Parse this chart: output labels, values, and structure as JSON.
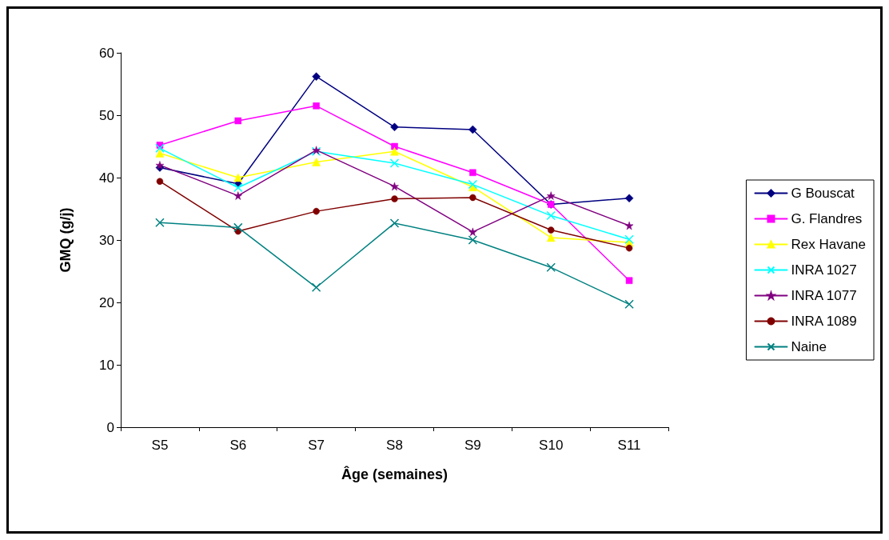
{
  "chart_data": {
    "type": "line",
    "xlabel": "Âge (semaines)",
    "ylabel": "GMQ (g/j)",
    "categories": [
      "S5",
      "S6",
      "S7",
      "S8",
      "S9",
      "S10",
      "S11"
    ],
    "ylim": [
      0,
      60
    ],
    "yticks": [
      0,
      10,
      20,
      30,
      40,
      50,
      60
    ],
    "grid": false,
    "legend": "right",
    "series": [
      {
        "name": "G Bouscat",
        "color": "#000080",
        "marker": "diamond",
        "values": [
          41.6,
          39,
          56.2,
          48.1,
          47.7,
          35.7,
          36.7
        ]
      },
      {
        "name": "G. Flandres",
        "color": "#ff00ff",
        "marker": "square",
        "values": [
          45.2,
          49.1,
          51.5,
          45,
          40.8,
          35.7,
          23.5
        ]
      },
      {
        "name": "Rex Havane",
        "color": "#ffff00",
        "marker": "triangle",
        "values": [
          43.9,
          40,
          42.5,
          44.2,
          38.5,
          30.4,
          29.6
        ]
      },
      {
        "name": "INRA 1027",
        "color": "#00ffff",
        "marker": "cross",
        "values": [
          44.7,
          38.4,
          44.2,
          42.3,
          38.9,
          33.9,
          30.1
        ]
      },
      {
        "name": "INRA 1077",
        "color": "#800080",
        "marker": "star",
        "values": [
          42,
          37.1,
          44.4,
          38.6,
          31.3,
          37.1,
          32.3
        ]
      },
      {
        "name": "INRA 1089",
        "color": "#800000",
        "marker": "circle",
        "values": [
          39.4,
          31.4,
          34.6,
          36.6,
          36.8,
          31.6,
          28.7
        ]
      },
      {
        "name": "Naine",
        "color": "#008080",
        "marker": "cross",
        "values": [
          32.8,
          32,
          22.4,
          32.7,
          30,
          25.6,
          19.7
        ]
      }
    ]
  }
}
